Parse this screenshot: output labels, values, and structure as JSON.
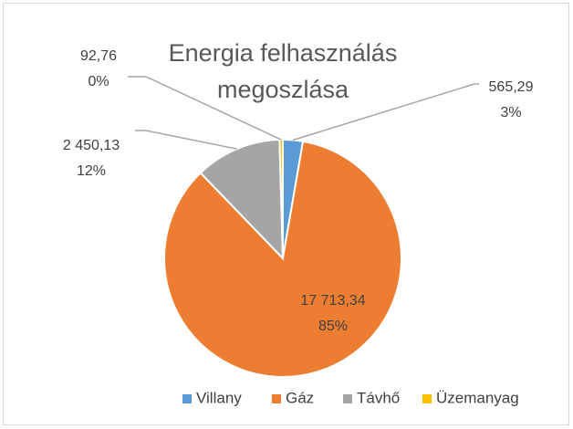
{
  "chart_data": {
    "type": "pie",
    "title": "Energia felhasználás megoszlása",
    "categories": [
      "Villany",
      "Gáz",
      "Távhő",
      "Üzemanyag"
    ],
    "values": [
      565.29,
      17713.34,
      2450.13,
      92.76
    ],
    "value_labels": [
      "565,29",
      "17 713,34",
      "2 450,13",
      "92,76"
    ],
    "percent_labels": [
      "3%",
      "85%",
      "12%",
      "0%"
    ],
    "colors": [
      "#5b9bd5",
      "#ed7d31",
      "#a5a5a5",
      "#ffc000"
    ],
    "legend": "bottom"
  }
}
